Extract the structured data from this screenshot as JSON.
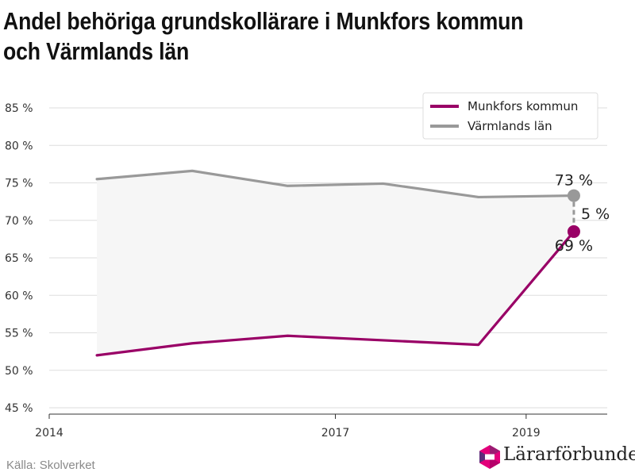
{
  "title": "Andel behöriga grundskollärare i Munkfors kommun och Värmlands län",
  "source": "Källa: Skolverket",
  "brand": {
    "name": "Lärarförbundet",
    "logo_icon": "lararforbundet-logo-icon",
    "colors": [
      "#e3007b",
      "#9b1b72",
      "#5c2d7a"
    ]
  },
  "chart_data": {
    "type": "line",
    "title": "Andel behöriga grundskollärare i Munkfors kommun och Värmlands län",
    "xlabel": "",
    "ylabel": "",
    "xlim": [
      2014,
      2019.85
    ],
    "ylim": [
      45,
      85
    ],
    "x_ticks": [
      {
        "value": 2014,
        "label": "2014"
      },
      {
        "value": 2017,
        "label": "2017"
      },
      {
        "value": 2019,
        "label": "2019"
      }
    ],
    "y_ticks": [
      {
        "value": 45,
        "label": "45 %"
      },
      {
        "value": 50,
        "label": "50 %"
      },
      {
        "value": 55,
        "label": "55 %"
      },
      {
        "value": 60,
        "label": "60 %"
      },
      {
        "value": 65,
        "label": "65 %"
      },
      {
        "value": 70,
        "label": "70 %"
      },
      {
        "value": 75,
        "label": "75 %"
      },
      {
        "value": 80,
        "label": "80 %"
      },
      {
        "value": 85,
        "label": "85 %"
      }
    ],
    "grid": true,
    "legend_position": "top-right",
    "series": [
      {
        "name": "Munkfors kommun",
        "color": "#990066",
        "points": [
          {
            "x": 2014.5,
            "y": 52.0
          },
          {
            "x": 2015.5,
            "y": 53.6
          },
          {
            "x": 2016.5,
            "y": 54.6
          },
          {
            "x": 2017.5,
            "y": 54.0
          },
          {
            "x": 2018.5,
            "y": 53.4
          },
          {
            "x": 2019.5,
            "y": 68.5
          }
        ]
      },
      {
        "name": "Värmlands län",
        "color": "#999999",
        "points": [
          {
            "x": 2014.5,
            "y": 75.5
          },
          {
            "x": 2015.5,
            "y": 76.6
          },
          {
            "x": 2016.5,
            "y": 74.6
          },
          {
            "x": 2017.5,
            "y": 74.9
          },
          {
            "x": 2018.5,
            "y": 73.1
          },
          {
            "x": 2019.5,
            "y": 73.3
          }
        ]
      }
    ],
    "annotations": {
      "upper_label": "73 %",
      "lower_label": "69 %",
      "difference_label": "5 %"
    }
  }
}
